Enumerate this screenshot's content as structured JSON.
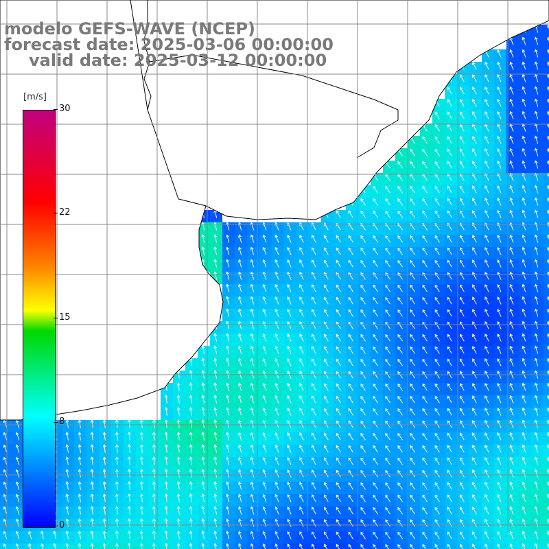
{
  "title": {
    "line1": "modelo GEFS-WAVE (NCEP)",
    "line2": "forecast date: 2025-03-06 00:00:00",
    "line3": "valid date: 2025-03-12 00:00:00"
  },
  "colorbar": {
    "unit": "[m/s]",
    "min": 0,
    "max": 30,
    "ticks": [
      "30",
      "22",
      "15",
      "8",
      "0"
    ],
    "tick_values": [
      30,
      22,
      15,
      8,
      0
    ]
  },
  "map": {
    "land_color": "#ffffff",
    "coast_color": "#000000",
    "grid_color": "#888888",
    "arrow_color": "#ffffff"
  }
}
